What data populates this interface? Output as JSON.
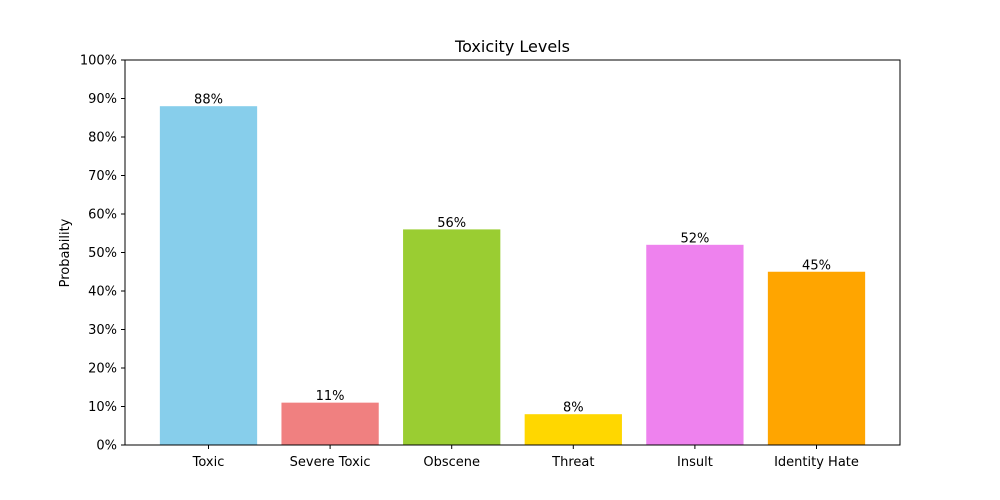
{
  "chart_data": {
    "type": "bar",
    "title": "Toxicity Levels",
    "xlabel": "",
    "ylabel": "Probability",
    "categories": [
      "Toxic",
      "Severe Toxic",
      "Obscene",
      "Threat",
      "Insult",
      "Identity Hate"
    ],
    "values": [
      0.88,
      0.11,
      0.56,
      0.08,
      0.52,
      0.45
    ],
    "data_labels": [
      "88%",
      "11%",
      "56%",
      "8%",
      "52%",
      "45%"
    ],
    "colors": [
      "#87CEEB",
      "#F08080",
      "#9ACD32",
      "#FFD700",
      "#EE82EE",
      "#FFA500"
    ],
    "ylim": [
      0,
      1
    ],
    "yticks": [
      0,
      0.1,
      0.2,
      0.3,
      0.4,
      0.5,
      0.6,
      0.7,
      0.8,
      0.9,
      1.0
    ],
    "ytick_labels": [
      "0%",
      "10%",
      "20%",
      "30%",
      "40%",
      "50%",
      "60%",
      "70%",
      "80%",
      "90%",
      "100%"
    ],
    "grid": false,
    "legend": "none"
  }
}
